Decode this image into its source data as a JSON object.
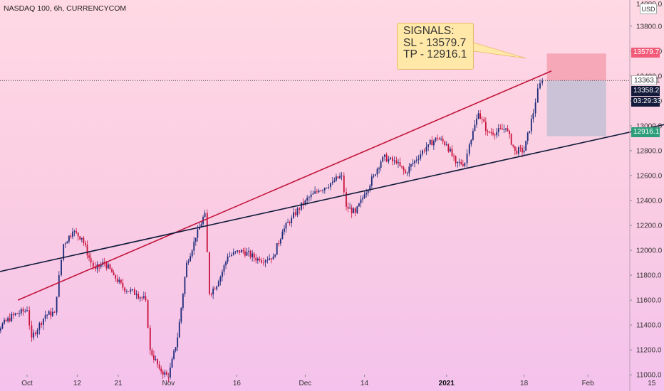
{
  "header": {
    "symbol": "NASDAQ 100, 6h, CURRENCYCOM",
    "currency": "USD"
  },
  "signals": {
    "title": "SIGNALS:",
    "sl": "SL - 13579.7",
    "tp": "TP - 12916.1"
  },
  "price_labels": {
    "sl": "13579.7",
    "last": "13363.1",
    "current": "13358.2",
    "countdown": "03:29:33",
    "tp": "12916.1"
  },
  "colors": {
    "sl_zone": "#f5a3b4",
    "tp_zone": "#c8c1d6",
    "channel_top": "#c2153c",
    "trendline": "#0f1a3a",
    "candle_up": "#1c2a7a",
    "candle_down": "#c8103a"
  },
  "chart_data": {
    "type": "candlestick",
    "title": "NASDAQ 100, 6h, CURRENCYCOM",
    "xlabel": "",
    "ylabel": "",
    "y_ticks": [
      11000,
      11200,
      11400,
      11600,
      11800,
      12000,
      12200,
      12400,
      12600,
      12800,
      13000,
      13200,
      13400,
      13600,
      13800
    ],
    "y_tick_labels": [
      "11000.0",
      "11200.0",
      "11400.0",
      "11600.0",
      "11800.0",
      "12000.0",
      "12200.0",
      "12400.0",
      "12600.0",
      "12800.0",
      "13000.0",
      "13200.0",
      "13400.0",
      "13600.0",
      "13800.0"
    ],
    "y_top_label": "14000.0",
    "x_tick_labels": [
      "Oct",
      "12",
      "21",
      "Nov",
      "16",
      "Dec",
      "14",
      "2021",
      "18",
      "Feb",
      "15"
    ],
    "x_tick_dates": [
      "2020-10-01",
      "2020-10-12",
      "2020-10-21",
      "2020-11-01",
      "2020-11-16",
      "2020-12-01",
      "2020-12-14",
      "2021-01-01",
      "2021-01-18",
      "2021-02-01",
      "2021-02-15"
    ],
    "ylim": [
      10870,
      14010
    ],
    "grid": false,
    "close_series": [
      [
        "2020-09-21",
        10950
      ],
      [
        "2020-09-24",
        11350
      ],
      [
        "2020-09-28",
        11480
      ],
      [
        "2020-10-01",
        11520
      ],
      [
        "2020-10-02",
        11300
      ],
      [
        "2020-10-05",
        11480
      ],
      [
        "2020-10-07",
        11500
      ],
      [
        "2020-10-08",
        11800
      ],
      [
        "2020-10-09",
        12050
      ],
      [
        "2020-10-11",
        12150
      ],
      [
        "2020-10-13",
        12100
      ],
      [
        "2020-10-15",
        11900
      ],
      [
        "2020-10-16",
        11850
      ],
      [
        "2020-10-18",
        11900
      ],
      [
        "2020-10-20",
        11800
      ],
      [
        "2020-10-22",
        11700
      ],
      [
        "2020-10-25",
        11650
      ],
      [
        "2020-10-27",
        11600
      ],
      [
        "2020-10-28",
        11200
      ],
      [
        "2020-10-30",
        11050
      ],
      [
        "2020-11-01",
        10980
      ],
      [
        "2020-11-03",
        11300
      ],
      [
        "2020-11-05",
        11900
      ],
      [
        "2020-11-07",
        12100
      ],
      [
        "2020-11-09",
        12300
      ],
      [
        "2020-11-10",
        11650
      ],
      [
        "2020-11-12",
        11750
      ],
      [
        "2020-11-14",
        11950
      ],
      [
        "2020-11-17",
        12000
      ],
      [
        "2020-11-21",
        11920
      ],
      [
        "2020-11-24",
        11950
      ],
      [
        "2020-11-26",
        12150
      ],
      [
        "2020-11-28",
        12260
      ],
      [
        "2020-12-01",
        12400
      ],
      [
        "2020-12-04",
        12480
      ],
      [
        "2020-12-07",
        12550
      ],
      [
        "2020-12-09",
        12600
      ],
      [
        "2020-12-10",
        12350
      ],
      [
        "2020-12-12",
        12300
      ],
      [
        "2020-12-14",
        12450
      ],
      [
        "2020-12-16",
        12600
      ],
      [
        "2020-12-18",
        12750
      ],
      [
        "2020-12-21",
        12700
      ],
      [
        "2020-12-23",
        12620
      ],
      [
        "2020-12-25",
        12720
      ],
      [
        "2020-12-28",
        12850
      ],
      [
        "2020-12-30",
        12900
      ],
      [
        "2021-01-01",
        12850
      ],
      [
        "2021-01-03",
        12700
      ],
      [
        "2021-01-05",
        12700
      ],
      [
        "2021-01-06",
        12850
      ],
      [
        "2021-01-08",
        13100
      ],
      [
        "2021-01-10",
        12950
      ],
      [
        "2021-01-12",
        12950
      ],
      [
        "2021-01-14",
        12980
      ],
      [
        "2021-01-16",
        12800
      ],
      [
        "2021-01-18",
        12800
      ],
      [
        "2021-01-20",
        13100
      ],
      [
        "2021-01-21",
        13300
      ],
      [
        "2021-01-22",
        13360
      ]
    ],
    "channel_top_line": {
      "start": [
        "2020-09-29",
        11600
      ],
      "end": [
        "2021-01-24",
        13440
      ]
    },
    "support_line": {
      "start": [
        "2020-09-14",
        11740
      ],
      "end": [
        "2021-02-19",
        13020
      ]
    },
    "levels": {
      "stop_loss": 13579.7,
      "entry": 13363.1,
      "take_profit": 12916.1,
      "current": 13358.2
    },
    "position_zone": {
      "start": "2021-01-23",
      "end": "2021-02-05"
    }
  }
}
